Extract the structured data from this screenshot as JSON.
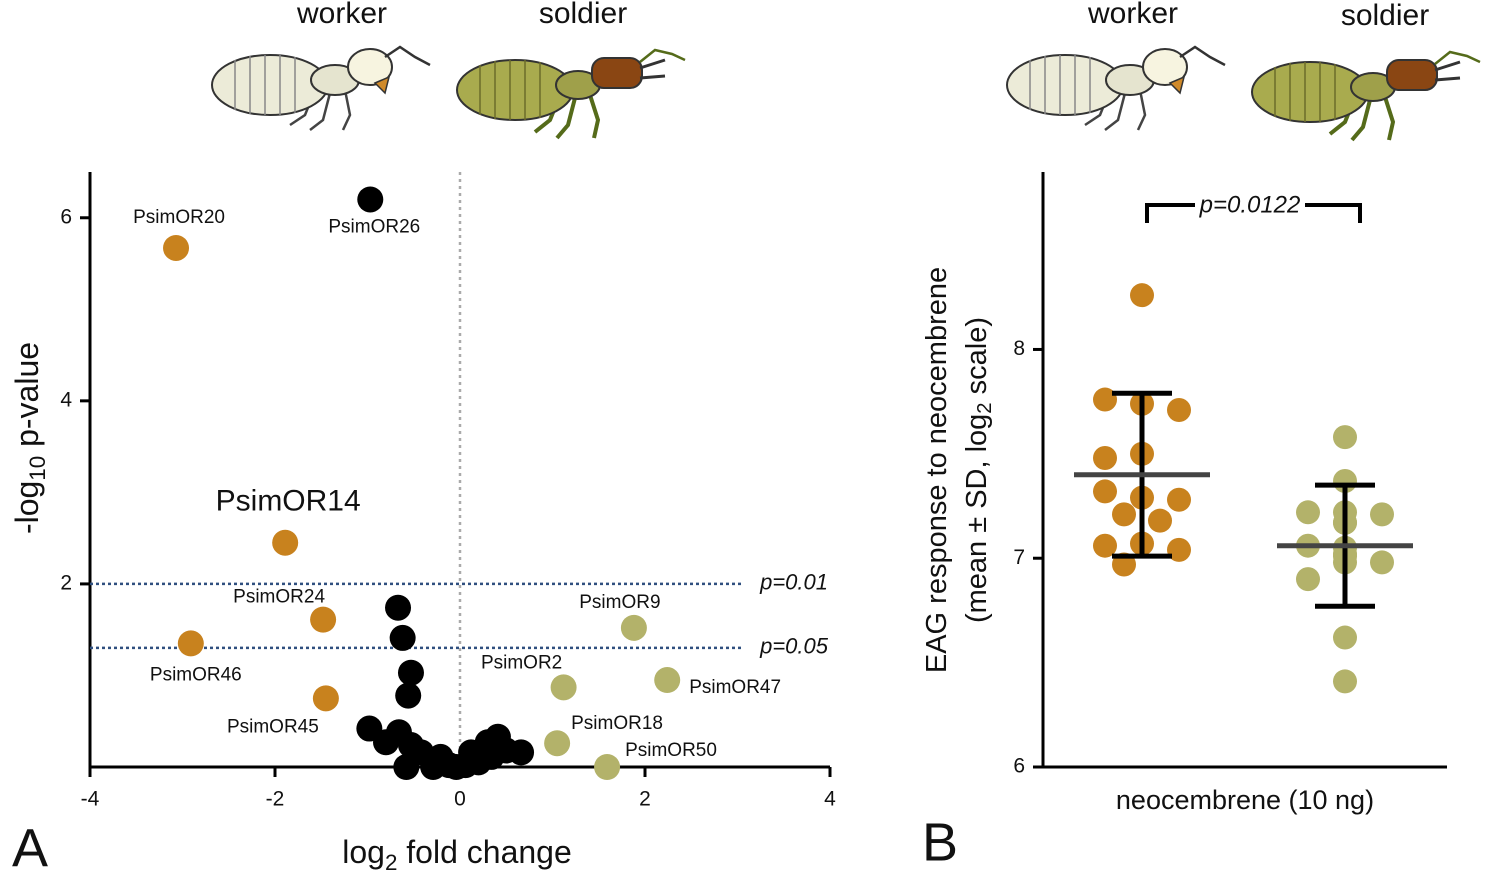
{
  "chart_data": [
    {
      "type": "scatter",
      "panel": "A",
      "group_labels": [
        "worker",
        "soldier"
      ],
      "xlabel": [
        "log",
        "2",
        " fold change"
      ],
      "ylabel": [
        "-log",
        "10",
        " p-value"
      ],
      "xlim": [
        -4,
        4
      ],
      "ylim": [
        0,
        6.5
      ],
      "xticks": [
        -4,
        -2,
        0,
        2,
        4
      ],
      "yticks": [
        2,
        4,
        6
      ],
      "vline": 0,
      "hlines": [
        {
          "value": 2,
          "label": "p=0.01"
        },
        {
          "value": 1.301,
          "label": "p=0.05"
        }
      ],
      "series": [
        {
          "color": "#000000",
          "x": [
            -0.97,
            -0.67,
            -0.62,
            -0.53,
            -0.56,
            -0.98,
            -0.66,
            -0.8,
            -0.53,
            -0.42,
            -0.58,
            -0.21,
            -0.29,
            -0.12,
            0.06,
            0.2,
            0.12,
            0.3,
            0.41,
            0.5,
            0.66,
            -0.04,
            0.34
          ],
          "y": [
            6.2,
            1.74,
            1.41,
            1.03,
            0.78,
            0.42,
            0.38,
            0.27,
            0.24,
            0.16,
            0,
            0.11,
            0,
            0.02,
            0.02,
            0.05,
            0.16,
            0.27,
            0.33,
            0.18,
            0.16,
            0,
            0.11
          ],
          "labels": [
            "PsimOR26",
            null,
            null,
            null,
            null,
            null,
            null,
            null,
            null,
            null,
            null,
            null,
            null,
            null,
            null,
            null,
            null,
            null,
            null,
            null,
            null,
            null,
            null
          ]
        },
        {
          "color": "#c8821e",
          "x": [
            -3.07,
            -1.89,
            -1.48,
            -2.91,
            -1.45
          ],
          "y": [
            5.67,
            2.45,
            1.61,
            1.35,
            0.75
          ],
          "labels": [
            "PsimOR20",
            "PsimOR14",
            "PsimOR24",
            "PsimOR46",
            "PsimOR45"
          ]
        },
        {
          "color": "#b3b26a",
          "x": [
            1.88,
            1.12,
            2.24,
            1.05,
            1.59
          ],
          "y": [
            1.52,
            0.87,
            0.95,
            0.26,
            0.0
          ],
          "labels": [
            "PsimOR9",
            "PsimOR2",
            "PsimOR47",
            "PsimOR18",
            "PsimOR50"
          ]
        }
      ]
    },
    {
      "type": "strip",
      "panel": "B",
      "ylabel": [
        [
          "EAG response to neocembrene"
        ],
        [
          "(mean ± SD, log",
          "2",
          " scale)"
        ]
      ],
      "categories": [
        "neocembrene (10 ng)"
      ],
      "ylim": [
        6,
        8.85
      ],
      "yticks": [
        6,
        7,
        8
      ],
      "annotation": "p=0.0122",
      "series": [
        {
          "name": "worker",
          "color": "#c8821e",
          "mean": 7.4,
          "sd": 0.39,
          "values": [
            8.26,
            7.74,
            7.76,
            7.71,
            7.5,
            7.48,
            7.29,
            7.32,
            7.28,
            7.21,
            7.18,
            7.07,
            7.06,
            7.04,
            6.97
          ]
        },
        {
          "name": "soldier",
          "color": "#b3b26a",
          "mean": 7.06,
          "sd": 0.29,
          "values": [
            7.58,
            7.37,
            7.22,
            7.22,
            7.21,
            7.17,
            7.17,
            7.06,
            6.98,
            6.98,
            7.01,
            7.02,
            7.05,
            6.9,
            6.62,
            6.41
          ]
        }
      ]
    }
  ]
}
